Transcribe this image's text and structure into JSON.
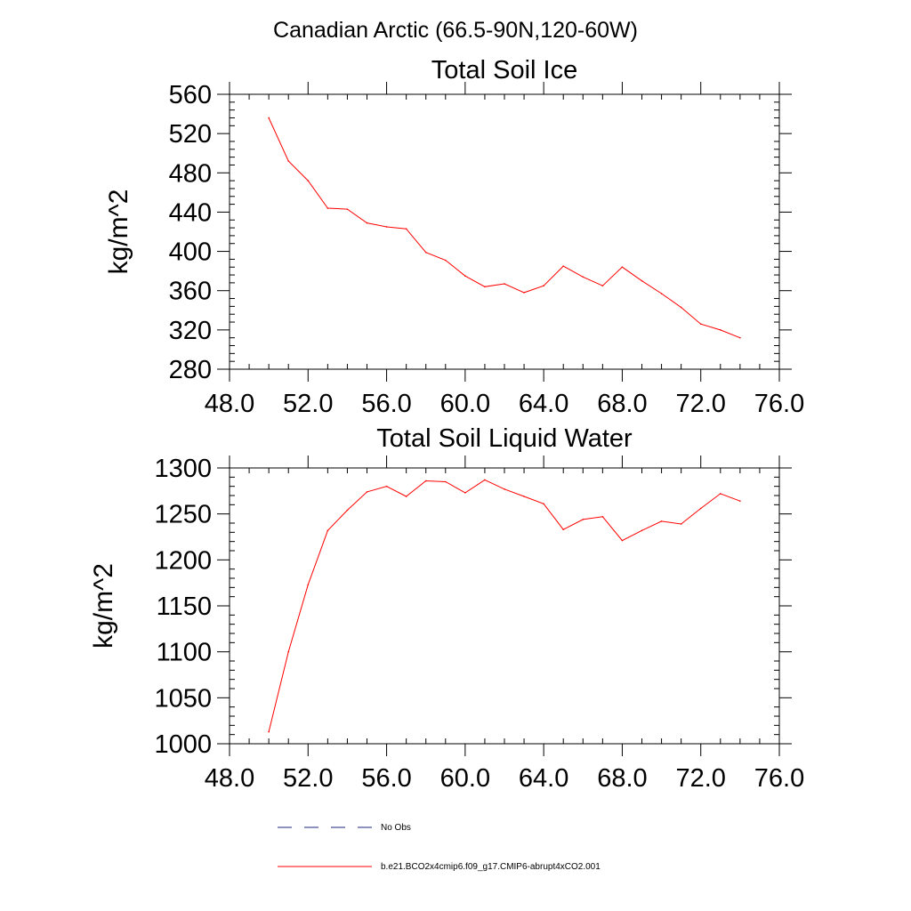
{
  "page": {
    "title": "Canadian Arctic (66.5-90N,120-60W)"
  },
  "chart_data": [
    {
      "type": "line",
      "title": "Total Soil Ice",
      "xlabel": "",
      "ylabel": "kg/m^2",
      "xlim": [
        48,
        76
      ],
      "ylim": [
        280,
        560
      ],
      "xticks": [
        48,
        52,
        56,
        60,
        64,
        68,
        72,
        76
      ],
      "xtick_labels": [
        "48.0",
        "52.0",
        "56.0",
        "60.0",
        "64.0",
        "68.0",
        "72.0",
        "76.0"
      ],
      "yticks": [
        280,
        320,
        360,
        400,
        440,
        480,
        520,
        560
      ],
      "ytick_labels": [
        "280",
        "320",
        "360",
        "400",
        "440",
        "480",
        "520",
        "560"
      ],
      "grid": false,
      "x": [
        50,
        51,
        52,
        53,
        54,
        55,
        56,
        57,
        58,
        59,
        60,
        61,
        62,
        63,
        64,
        65,
        66,
        67,
        68,
        69,
        70,
        71,
        72,
        73,
        74
      ],
      "series": [
        {
          "name": "b.e21.BCO2x4cmip6.f09_g17.CMIP6-abrupt4xCO2.001",
          "color": "#ff0000",
          "values": [
            536,
            492,
            472,
            444,
            443,
            429,
            425,
            423,
            399,
            391,
            375,
            364,
            367,
            358,
            365,
            385,
            374,
            365,
            384,
            370,
            357,
            343,
            326,
            320,
            312
          ]
        }
      ]
    },
    {
      "type": "line",
      "title": "Total Soil Liquid Water",
      "xlabel": "",
      "ylabel": "kg/m^2",
      "xlim": [
        48,
        76
      ],
      "ylim": [
        1000,
        1300
      ],
      "xticks": [
        48,
        52,
        56,
        60,
        64,
        68,
        72,
        76
      ],
      "xtick_labels": [
        "48.0",
        "52.0",
        "56.0",
        "60.0",
        "64.0",
        "68.0",
        "72.0",
        "76.0"
      ],
      "yticks": [
        1000,
        1050,
        1100,
        1150,
        1200,
        1250,
        1300
      ],
      "ytick_labels": [
        "1000",
        "1050",
        "1100",
        "1150",
        "1200",
        "1250",
        "1300"
      ],
      "grid": false,
      "x": [
        50,
        51,
        52,
        53,
        54,
        55,
        56,
        57,
        58,
        59,
        60,
        61,
        62,
        63,
        64,
        65,
        66,
        67,
        68,
        69,
        70,
        71,
        72,
        73,
        74
      ],
      "series": [
        {
          "name": "b.e21.BCO2x4cmip6.f09_g17.CMIP6-abrupt4xCO2.001",
          "color": "#ff0000",
          "values": [
            1013,
            1100,
            1173,
            1232,
            1254,
            1274,
            1280,
            1269,
            1286,
            1285,
            1273,
            1287,
            1277,
            1269,
            1261,
            1233,
            1244,
            1247,
            1221,
            1232,
            1242,
            1239,
            1256,
            1272,
            1264
          ]
        }
      ]
    }
  ],
  "legend": {
    "placement": "bottom",
    "items": [
      {
        "label": "No Obs",
        "color": "#1a237e",
        "style": "dashed"
      },
      {
        "label": "b.e21.BCO2x4cmip6.f09_g17.CMIP6-abrupt4xCO2.001",
        "color": "#ff0000",
        "style": "solid"
      }
    ]
  }
}
